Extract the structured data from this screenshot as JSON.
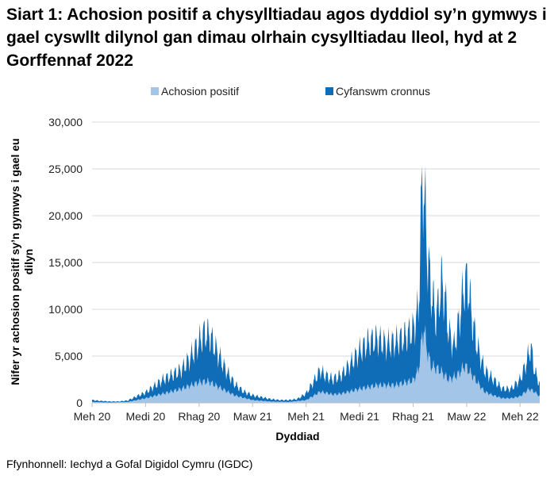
{
  "chart_data": {
    "type": "area",
    "title": "Siart 1: Achosion positif a chysylltiadau agos dyddiol sy’n gymwys i gael cyswllt dilynol gan dimau olrhain cysylltiadau lleol, hyd at 2 Gorffennaf 2022",
    "xlabel": "Dyddiad",
    "ylabel": "Nifer yr achosion positif sy’n gymwys i gael eu dilyn",
    "ylim": [
      0,
      30000
    ],
    "yticks": [
      0,
      5000,
      10000,
      15000,
      20000,
      25000,
      30000
    ],
    "ytick_labels": [
      "0",
      "5,000",
      "10,000",
      "15,000",
      "20,000",
      "25,000",
      "30,000"
    ],
    "xticks": [
      {
        "label": "Meh 20",
        "month_index": 0
      },
      {
        "label": "Medi 20",
        "month_index": 3
      },
      {
        "label": "Rhag 20",
        "month_index": 6
      },
      {
        "label": "Maw 21",
        "month_index": 9
      },
      {
        "label": "Meh 21",
        "month_index": 12
      },
      {
        "label": "Medi 21",
        "month_index": 15
      },
      {
        "label": "Rhag 21",
        "month_index": 18
      },
      {
        "label": "Maw 22",
        "month_index": 21
      },
      {
        "label": "Meh 22",
        "month_index": 24
      }
    ],
    "x_range_months": [
      0,
      25.1
    ],
    "grid": true,
    "legend_position": "top",
    "legend": [
      {
        "name": "Achosion positif",
        "color": "#a3c6e8"
      },
      {
        "name": "Cyfanswm cronnus",
        "color": "#0f6db8"
      }
    ],
    "series": [
      {
        "name": "Cyfanswm cronnus",
        "color": "#0f6db8",
        "weekly_swing": 0.22,
        "points": [
          [
            0,
            300
          ],
          [
            0.5,
            200
          ],
          [
            1,
            150
          ],
          [
            1.5,
            150
          ],
          [
            2,
            250
          ],
          [
            2.5,
            700
          ],
          [
            3,
            1100
          ],
          [
            3.5,
            1800
          ],
          [
            4,
            2500
          ],
          [
            4.5,
            3000
          ],
          [
            5,
            3500
          ],
          [
            5.5,
            4800
          ],
          [
            6,
            6500
          ],
          [
            6.3,
            7500
          ],
          [
            6.6,
            7200
          ],
          [
            7,
            5500
          ],
          [
            7.5,
            3500
          ],
          [
            8,
            2000
          ],
          [
            8.5,
            1200
          ],
          [
            9,
            800
          ],
          [
            9.5,
            600
          ],
          [
            10,
            400
          ],
          [
            10.5,
            300
          ],
          [
            11,
            300
          ],
          [
            11.5,
            400
          ],
          [
            12,
            1000
          ],
          [
            12.5,
            2500
          ],
          [
            12.8,
            3500
          ],
          [
            13,
            3000
          ],
          [
            13.5,
            2500
          ],
          [
            14,
            3000
          ],
          [
            14.5,
            4200
          ],
          [
            15,
            5500
          ],
          [
            15.5,
            6500
          ],
          [
            16,
            6800
          ],
          [
            16.5,
            6200
          ],
          [
            17,
            6500
          ],
          [
            17.5,
            7000
          ],
          [
            18,
            7800
          ],
          [
            18.3,
            10000
          ],
          [
            18.45,
            20000
          ],
          [
            18.55,
            25000
          ],
          [
            18.65,
            21000
          ],
          [
            18.8,
            16000
          ],
          [
            19,
            12000
          ],
          [
            19.3,
            9000
          ],
          [
            19.6,
            13000
          ],
          [
            19.8,
            11000
          ],
          [
            20,
            7500
          ],
          [
            20.3,
            6000
          ],
          [
            20.6,
            9000
          ],
          [
            20.9,
            13000
          ],
          [
            21.1,
            12500
          ],
          [
            21.3,
            9000
          ],
          [
            21.6,
            6000
          ],
          [
            22,
            3500
          ],
          [
            22.5,
            2500
          ],
          [
            23,
            1500
          ],
          [
            23.5,
            1500
          ],
          [
            24,
            2500
          ],
          [
            24.3,
            4000
          ],
          [
            24.6,
            6000
          ],
          [
            24.8,
            3500
          ],
          [
            25,
            2500
          ],
          [
            25.1,
            2000
          ]
        ]
      },
      {
        "name": "Achosion positif",
        "color": "#a3c6e8",
        "weekly_swing": 0.15,
        "points": [
          [
            0,
            100
          ],
          [
            1,
            50
          ],
          [
            2,
            100
          ],
          [
            3,
            500
          ],
          [
            4,
            1000
          ],
          [
            5,
            1500
          ],
          [
            6,
            2200
          ],
          [
            6.5,
            2300
          ],
          [
            7,
            1800
          ],
          [
            8,
            800
          ],
          [
            9,
            300
          ],
          [
            10,
            150
          ],
          [
            11,
            100
          ],
          [
            12,
            300
          ],
          [
            12.8,
            1200
          ],
          [
            13.5,
            900
          ],
          [
            14,
            1000
          ],
          [
            15,
            1500
          ],
          [
            16,
            1900
          ],
          [
            17,
            1900
          ],
          [
            18,
            2400
          ],
          [
            18.3,
            3500
          ],
          [
            18.5,
            7000
          ],
          [
            18.6,
            8000
          ],
          [
            18.8,
            5500
          ],
          [
            19,
            4000
          ],
          [
            19.5,
            3500
          ],
          [
            20,
            2500
          ],
          [
            20.5,
            3000
          ],
          [
            20.9,
            4000
          ],
          [
            21.3,
            3000
          ],
          [
            22,
            1200
          ],
          [
            22.5,
            800
          ],
          [
            23,
            500
          ],
          [
            23.5,
            500
          ],
          [
            24,
            700
          ],
          [
            24.5,
            1500
          ],
          [
            24.8,
            1200
          ],
          [
            25.1,
            700
          ]
        ]
      }
    ]
  },
  "source": "Ffynhonnell: Iechyd a Gofal Digidol Cymru (IGDC)"
}
